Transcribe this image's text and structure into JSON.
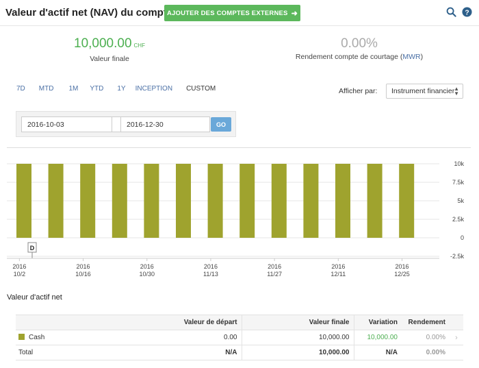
{
  "header": {
    "title": "Valeur d'actif net (NAV) du compte",
    "add_accounts_label": "AJOUTER DES COMPTES EXTERNES",
    "add_accounts_icon": "arrow-right-icon",
    "search_icon": "search-icon",
    "help_icon": "help-icon"
  },
  "kpis": {
    "final_value": "10,000.00",
    "final_unit": "CHF",
    "final_label": "Valeur finale",
    "return_value": "0.00%",
    "return_label": "Rendement compte de courtage",
    "return_label_open": "(",
    "return_label_mwr": "MWR",
    "return_label_close": ")"
  },
  "ranges": [
    "7D",
    "MTD",
    "1M",
    "YTD",
    "1Y",
    "INCEPTION",
    "CUSTOM"
  ],
  "active_range": "CUSTOM",
  "display_by": {
    "label": "Afficher par:",
    "selected": "Instrument financier"
  },
  "date_range": {
    "start": "2016-10-03",
    "end": "2016-12-30",
    "go_label": "GO"
  },
  "colors": {
    "bar": "#9fa32e",
    "accent_green": "#4caf50",
    "link_blue": "#4a6fa5",
    "button_green": "#5cb85c",
    "go_blue": "#6aa8d9"
  },
  "chart_data": {
    "type": "bar",
    "series": [
      {
        "name": "Cash",
        "values": [
          10000,
          10000,
          10000,
          10000,
          10000,
          10000,
          10000,
          10000,
          10000,
          10000,
          10000,
          10000,
          10000
        ]
      }
    ],
    "bar_dates": [
      "2016-10-03",
      "2016-10-10",
      "2016-10-17",
      "2016-10-24",
      "2016-10-31",
      "2016-11-07",
      "2016-11-14",
      "2016-11-21",
      "2016-11-28",
      "2016-12-05",
      "2016-12-12",
      "2016-12-19",
      "2016-12-26"
    ],
    "x_ticks": [
      {
        "year": "2016",
        "label": "10/2"
      },
      {
        "year": "2016",
        "label": "10/16"
      },
      {
        "year": "2016",
        "label": "10/30"
      },
      {
        "year": "2016",
        "label": "11/13"
      },
      {
        "year": "2016",
        "label": "11/27"
      },
      {
        "year": "2016",
        "label": "12/11"
      },
      {
        "year": "2016",
        "label": "12/25"
      }
    ],
    "y_ticks": [
      "10k",
      "7.5k",
      "5k",
      "2.5k",
      "0",
      "-2.5k"
    ],
    "y_tick_values": [
      10000,
      7500,
      5000,
      2500,
      0,
      -2500
    ],
    "ylim": [
      -2500,
      10000
    ],
    "annotation": "D",
    "grid": true
  },
  "table": {
    "section_title": "Valeur d'actif net",
    "headers": [
      "",
      "Valeur de départ",
      "Valeur finale",
      "Variation",
      "Rendement"
    ],
    "rows": [
      {
        "name": "Cash",
        "start": "0.00",
        "end": "10,000.00",
        "change": "10,000.00",
        "return": "0.00%"
      }
    ],
    "total": {
      "name": "Total",
      "start": "N/A",
      "end": "10,000.00",
      "change": "N/A",
      "return": "0.00%"
    }
  }
}
